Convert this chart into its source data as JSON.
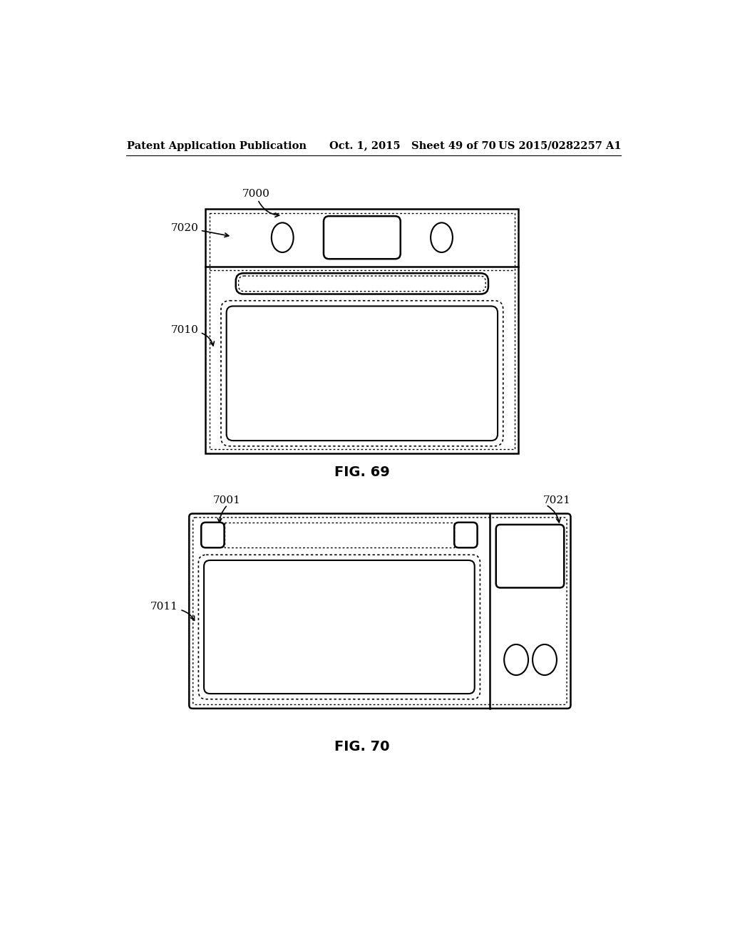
{
  "bg_color": "#ffffff",
  "header_left": "Patent Application Publication",
  "header_mid": "Oct. 1, 2015   Sheet 49 of 70",
  "header_right": "US 2015/0282257 A1",
  "fig69_caption": "FIG. 69",
  "fig70_caption": "FIG. 70",
  "label_7000": "7000",
  "label_7020": "7020",
  "label_7010": "7010",
  "label_7001": "7001",
  "label_7021": "7021",
  "label_7011": "7011"
}
